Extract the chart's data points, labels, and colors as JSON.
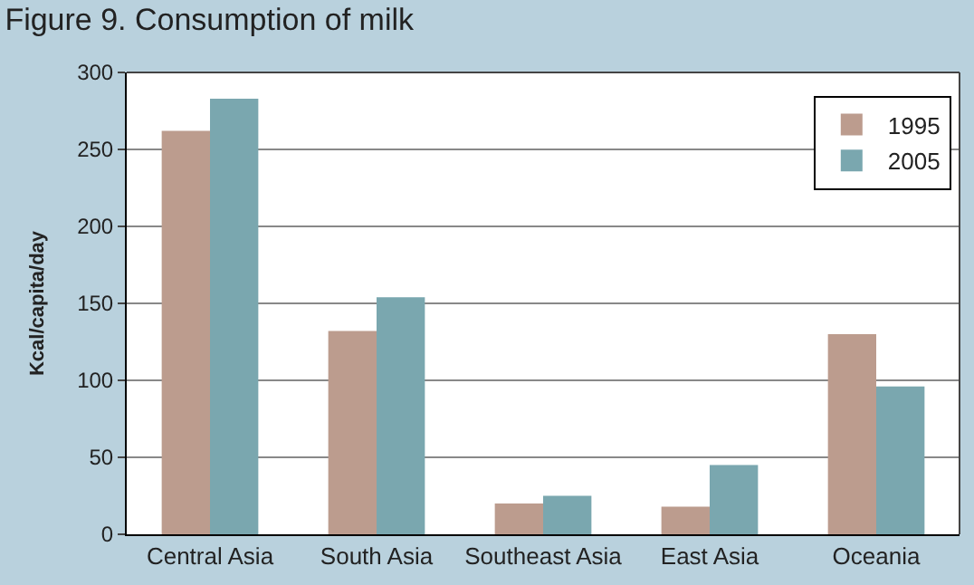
{
  "chart_data": {
    "type": "bar",
    "title": "Figure 9. Consumption of milk",
    "ylabel": "Kcal/capita/day",
    "categories": [
      "Central Asia",
      "South Asia",
      "Southeast Asia",
      "East Asia",
      "Oceania"
    ],
    "series": [
      {
        "name": "1995",
        "color": "#bc9c8e",
        "values": [
          262,
          132,
          20,
          18,
          130
        ]
      },
      {
        "name": "2005",
        "color": "#7aa7af",
        "values": [
          283,
          154,
          25,
          45,
          96
        ]
      }
    ],
    "ylim": [
      0,
      300
    ],
    "yticks": [
      0,
      50,
      100,
      150,
      200,
      250,
      300
    ],
    "grid": "y",
    "legend": "top right"
  }
}
